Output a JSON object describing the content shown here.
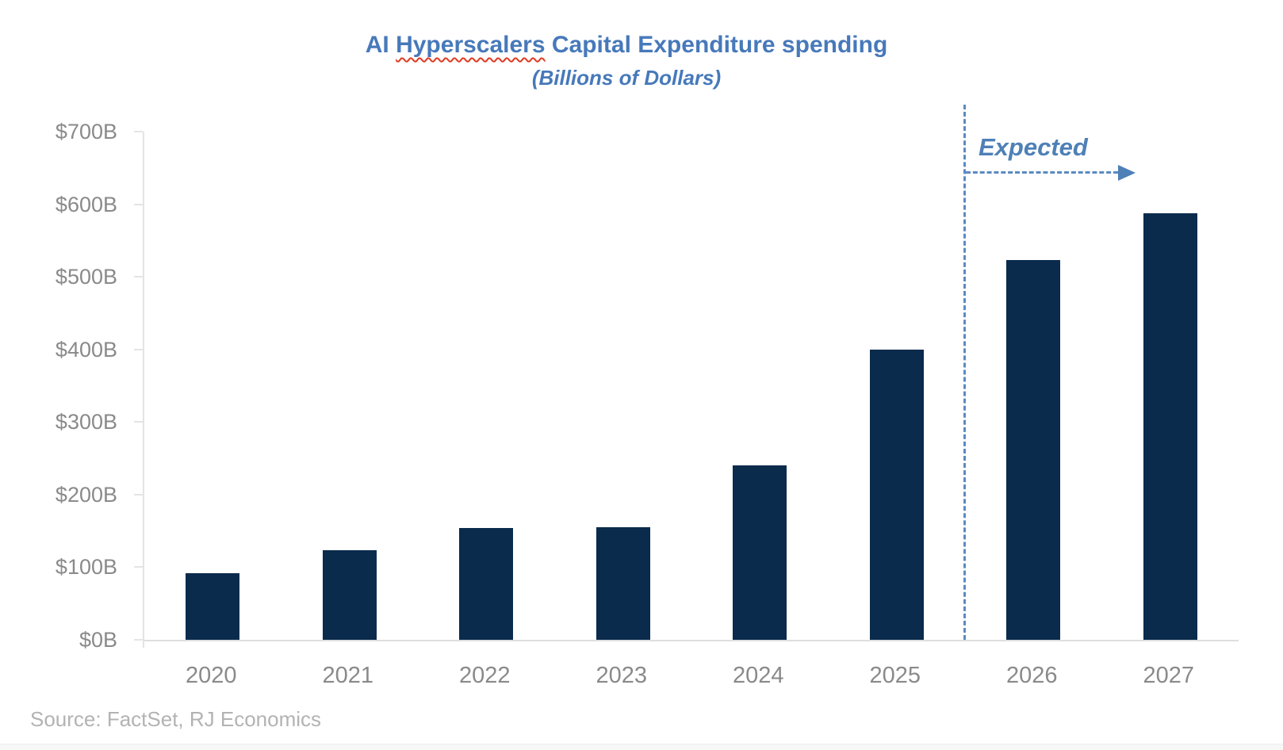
{
  "header": {
    "title_prefix": "AI ",
    "title_spellcheck_word": "Hyperscalers",
    "title_suffix": " Capital Expenditure spending",
    "subtitle": "(Billions of Dollars)"
  },
  "annotation": {
    "expected_label": "Expected"
  },
  "footer": {
    "source": "Source: FactSet, RJ Economics"
  },
  "chart_data": {
    "type": "bar",
    "title": "AI Hyperscalers Capital Expenditure spending",
    "subtitle": "(Billions of Dollars)",
    "categories": [
      "2020",
      "2021",
      "2022",
      "2023",
      "2024",
      "2025",
      "2026",
      "2027"
    ],
    "values": [
      92,
      124,
      154,
      155,
      240,
      400,
      523,
      588
    ],
    "unit": "USD billions",
    "ylim": [
      0,
      700
    ],
    "ytick_labels": [
      "$0B",
      "$100B",
      "$200B",
      "$300B",
      "$400B",
      "$500B",
      "$600B",
      "$700B"
    ],
    "grid": false,
    "legend": "none",
    "annotation": {
      "label": "Expected",
      "divider_after_category": "2025",
      "applies_to": [
        "2026",
        "2027"
      ]
    },
    "colors": {
      "bar": "#0A2B4C",
      "title_blue": "#4779BA",
      "annotation_blue": "#4E80B7",
      "dashed_line_blue": "#5B8AC2",
      "axis_gray": "#E4E4E4",
      "tick_label_gray": "#8A8A8A",
      "source_gray": "#B3B3B3",
      "spellcheck_red": "#E03A21"
    }
  }
}
